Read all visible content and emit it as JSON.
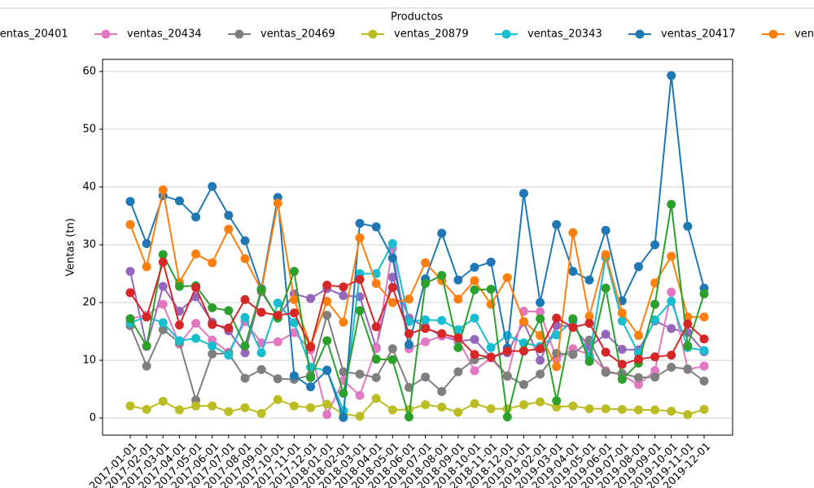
{
  "chart_data": {
    "type": "line",
    "legend_title": "Productos",
    "y_label": "Ventas (tn)",
    "categories": [
      "2017-01-01",
      "2017-02-01",
      "2017-03-01",
      "2017-04-01",
      "2017-05-01",
      "2017-06-01",
      "2017-07-01",
      "2017-08-01",
      "2017-09-01",
      "2017-10-01",
      "2017-11-01",
      "2017-12-01",
      "2018-01-01",
      "2018-02-01",
      "2018-03-01",
      "2018-04-01",
      "2018-05-01",
      "2018-06-01",
      "2018-07-01",
      "2018-08-01",
      "2018-09-01",
      "2018-10-01",
      "2018-11-01",
      "2018-12-01",
      "2019-01-01",
      "2019-02-01",
      "2019-03-01",
      "2019-04-01",
      "2019-05-01",
      "2019-06-01",
      "2019-07-01",
      "2019-08-01",
      "2019-09-01",
      "2019-10-01",
      "2019-11-01",
      "2019-12-01"
    ],
    "ylim": [
      -2.96,
      62.1
    ],
    "yticks": [
      0,
      10,
      20,
      30,
      40,
      50,
      60
    ],
    "grid": true,
    "series": [
      {
        "name": "ventas_20401",
        "color": "#9467bd",
        "values": [
          25.4,
          12.4,
          22.8,
          18.5,
          21.0,
          16.6,
          15.1,
          11.3,
          21.9,
          17.4,
          21.5,
          20.7,
          22.4,
          21.2,
          21.0,
          12.2,
          24.4,
          17.3,
          15.8,
          14.2,
          13.3,
          13.6,
          10.5,
          11.3,
          16.6,
          10.0,
          16.0,
          15.9,
          12.3,
          14.5,
          11.9,
          11.8,
          16.8,
          15.5,
          14.8,
          11.5
        ]
      },
      {
        "name": "ventas_20434",
        "color": "#e377c2",
        "values": [
          17.2,
          17.8,
          19.7,
          12.8,
          16.4,
          13.5,
          11.4,
          16.7,
          13.0,
          13.2,
          14.8,
          11.8,
          0.6,
          6.5,
          3.9,
          12.0,
          29.4,
          12.0,
          13.2,
          14.2,
          13.6,
          8.2,
          10.4,
          7.2,
          18.5,
          18.4,
          10.2,
          12.0,
          11.0,
          8.2,
          7.4,
          5.8,
          8.2,
          21.8,
          8.4,
          9.0
        ]
      },
      {
        "name": "ventas_20469",
        "color": "#7f7f7f",
        "values": [
          16.0,
          9.0,
          15.3,
          13.1,
          3.1,
          11.1,
          11.2,
          6.9,
          8.4,
          6.8,
          6.7,
          7.4,
          17.8,
          8.0,
          7.6,
          7.0,
          12.0,
          5.3,
          7.1,
          4.6,
          8.0,
          10.1,
          10.6,
          7.3,
          5.8,
          7.6,
          11.2,
          11.0,
          13.5,
          7.9,
          7.7,
          7.0,
          7.1,
          8.8,
          8.5,
          6.4
        ]
      },
      {
        "name": "ventas_20879",
        "color": "#bcbd22",
        "values": [
          2.1,
          1.5,
          2.9,
          1.4,
          2.1,
          2.1,
          1.1,
          1.8,
          0.8,
          3.2,
          2.1,
          1.8,
          2.4,
          0.7,
          0.3,
          3.4,
          1.4,
          1.5,
          2.3,
          1.9,
          1.0,
          2.5,
          1.6,
          1.6,
          2.3,
          2.8,
          1.9,
          2.1,
          1.6,
          1.6,
          1.5,
          1.4,
          1.4,
          1.2,
          0.6,
          1.5
        ]
      },
      {
        "name": "ventas_20343",
        "color": "#17becf",
        "values": [
          16.5,
          17.5,
          16.5,
          13.4,
          13.8,
          12.5,
          10.9,
          17.4,
          11.3,
          19.9,
          16.5,
          8.8,
          8.2,
          1.3,
          25.0,
          25.0,
          30.2,
          16.7,
          17.0,
          16.9,
          15.3,
          17.3,
          12.2,
          14.3,
          13.0,
          12.4,
          14.4,
          16.8,
          10.6,
          27.8,
          16.8,
          11.2,
          17.0,
          20.2,
          12.2,
          11.7
        ]
      },
      {
        "name": "ventas_20417",
        "color": "#1f77b4",
        "values": [
          37.5,
          30.2,
          38.5,
          37.6,
          34.8,
          40.1,
          35.1,
          30.7,
          22.4,
          38.2,
          7.3,
          5.4,
          8.3,
          0.1,
          33.7,
          33.1,
          27.7,
          12.7,
          24.1,
          32.0,
          23.9,
          26.1,
          27.0,
          12.1,
          38.9,
          20.0,
          33.5,
          25.4,
          23.9,
          32.5,
          20.3,
          26.2,
          30.0,
          59.3,
          33.2,
          22.5
        ]
      },
      {
        "name": "ven",
        "color": "#ff7f0e",
        "values": [
          33.5,
          26.2,
          39.5,
          23.5,
          28.4,
          26.9,
          32.7,
          27.6,
          22.1,
          37.2,
          20.5,
          12.5,
          20.2,
          16.6,
          31.2,
          23.3,
          20.0,
          20.6,
          26.9,
          23.8,
          20.6,
          23.8,
          19.7,
          24.3,
          16.7,
          14.3,
          8.9,
          32.1,
          17.6,
          28.3,
          18.2,
          14.3,
          23.4,
          28.0,
          17.5,
          17.5
        ]
      },
      {
        "color": "#2ca02c",
        "values": [
          17.2,
          12.5,
          28.3,
          22.8,
          22.9,
          19.1,
          18.6,
          12.5,
          22.2,
          17.3,
          25.4,
          7.0,
          13.4,
          4.3,
          18.6,
          10.2,
          10.1,
          0.2,
          23.3,
          24.7,
          12.2,
          22.2,
          22.3,
          0.2,
          11.7,
          17.2,
          3.0,
          17.2,
          9.8,
          22.5,
          6.7,
          9.5,
          19.7,
          37.0,
          12.5,
          21.5
        ]
      },
      {
        "color": "#d62728",
        "values": [
          21.7,
          17.5,
          27.0,
          16.1,
          22.6,
          16.2,
          15.6,
          20.5,
          18.3,
          17.8,
          18.2,
          12.3,
          23.0,
          22.7,
          24.0,
          15.8,
          22.6,
          14.6,
          15.5,
          14.6,
          13.9,
          11.0,
          10.5,
          11.6,
          11.6,
          12.0,
          17.3,
          15.7,
          16.4,
          11.4,
          9.3,
          10.2,
          10.6,
          10.9,
          16.3,
          13.7
        ]
      }
    ]
  }
}
